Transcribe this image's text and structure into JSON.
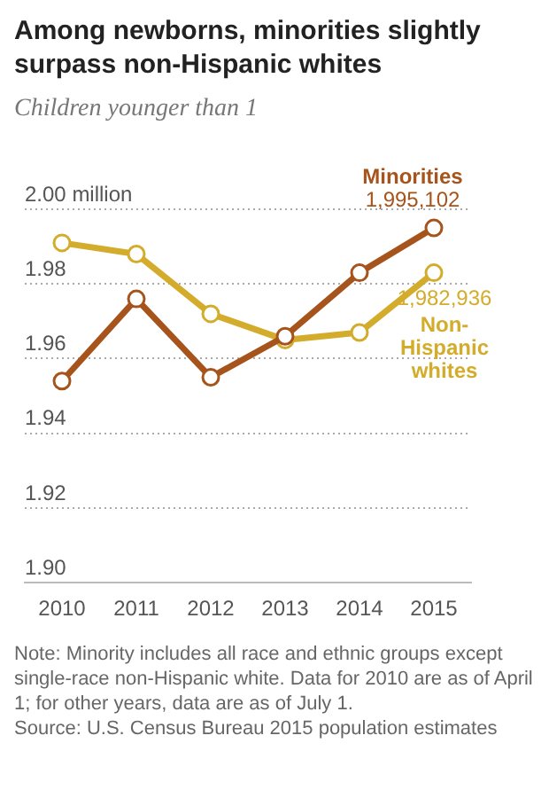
{
  "chart_data": {
    "type": "line",
    "title": "Among newborns, minorities slightly surpass non-Hispanic whites",
    "subtitle": "Children younger than 1",
    "categories": [
      "2010",
      "2011",
      "2012",
      "2013",
      "2014",
      "2015"
    ],
    "series": [
      {
        "name": "Minorities",
        "color": "#a6531c",
        "values": [
          1.954,
          1.976,
          1.955,
          1.966,
          1.983,
          1.995
        ]
      },
      {
        "name": "Non-Hispanic whites",
        "color": "#d4ac2c",
        "values": [
          1.991,
          1.988,
          1.972,
          1.965,
          1.967,
          1.983
        ]
      }
    ],
    "ylim": [
      1.9,
      2.0
    ],
    "yticks": [
      {
        "value": 1.9,
        "label": "1.90"
      },
      {
        "value": 1.92,
        "label": "1.92"
      },
      {
        "value": 1.94,
        "label": "1.94"
      },
      {
        "value": 1.96,
        "label": "1.96"
      },
      {
        "value": 1.98,
        "label": "1.98"
      },
      {
        "value": 2.0,
        "label": "2.00 million"
      }
    ],
    "grid": "y",
    "legend": false,
    "marker": "circle",
    "line_style": "solid",
    "annotations": [
      {
        "text": "1,995,102",
        "x": "2015",
        "y": 1.995
      },
      {
        "text": "1,982,936",
        "x": "2015",
        "y": 1.983
      },
      "Note: Minority includes all race and ethnic groups except single-race non-Hispanic white. Data for 2010 are as of April 1; for other years, data are as of July 1.",
      "Source: U.S. Census Bureau 2015 population estimates"
    ]
  }
}
